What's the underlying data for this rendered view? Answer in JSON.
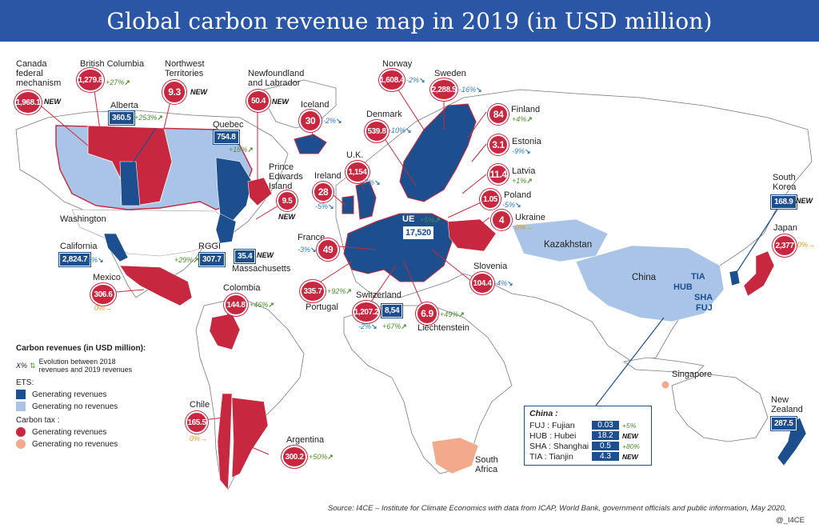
{
  "title": "Global carbon revenue map in 2019 (in USD million)",
  "colors": {
    "ets_revenue": "#1d4f8f",
    "ets_no_revenue": "#a9c4e6",
    "tax_revenue": "#c8283f",
    "tax_no_revenue": "#f2a98c",
    "land": "#ffffff",
    "title_bg": "#2a56a5"
  },
  "labels": {
    "canada_fed": "Canada federal mechanism",
    "british_columbia": "British Columbia",
    "northwest": "Northwest Territories",
    "newfoundland": "Newfoundland and Labrador",
    "alberta": "Alberta",
    "quebec": "Quebec",
    "pei": "Prince Edwards Island",
    "washington": "Washington",
    "california": "California",
    "rggi": "RGGI",
    "massachusetts": "Massachusetts",
    "mexico": "Mexico",
    "colombia": "Colombia",
    "chile": "Chile",
    "argentina": "Argentina",
    "iceland": "Iceland",
    "norway": "Norway",
    "sweden": "Sweden",
    "denmark": "Denmark",
    "finland": "Finland",
    "estonia": "Estonia",
    "latvia": "Latvia",
    "poland": "Poland",
    "ukraine": "Ukraine",
    "uk": "U.K.",
    "ireland": "Ireland",
    "france": "France",
    "portugal": "Portugal",
    "switzerland": "Switzerland",
    "liechtenstein": "Liechtenstein",
    "slovenia": "Slovenia",
    "kazakhstan": "Kazakhstan",
    "china": "China",
    "south_korea": "South Korea",
    "japan": "Japan",
    "singapore": "Singapore",
    "new_zealand": "New Zealand",
    "south_africa": "South Africa"
  },
  "values": {
    "canada_fed": "1,968.1",
    "british_columbia": "1,279.8",
    "northwest": "9.3",
    "newfoundland": "50.4",
    "alberta": "360.5",
    "quebec": "754.8",
    "pei": "9.5",
    "california": "2,824.7",
    "rggi": "307.7",
    "massachusetts": "35.4",
    "mexico": "306.6",
    "colombia": "144.8",
    "chile": "165.5",
    "argentina": "300.2",
    "iceland": "30",
    "norway": "1,608.4",
    "sweden": "2,288.5",
    "denmark": "539.8",
    "finland": "84",
    "estonia": "3.1",
    "latvia": "11.4",
    "poland": "1.05",
    "ukraine": "4",
    "uk": "1,154",
    "ireland": "28",
    "france": "49",
    "portugal": "335.7",
    "switzerland_tax": "1,207.2",
    "switzerland_ets": "8,54",
    "liechtenstein": "6.9",
    "slovenia": "104.4",
    "ue": "17,520",
    "south_korea": "168.9",
    "japan": "2,377",
    "new_zealand": "287.5"
  },
  "changes": {
    "british_columbia": "+27%",
    "alberta": "+253%",
    "quebec": "+18%",
    "california": "-6%",
    "rggi": "+29%",
    "mexico": "0%",
    "colombia": "+46%",
    "chile": "0%",
    "argentina": "+50%",
    "iceland": "-2%",
    "norway": "-2%",
    "sweden": "-16%",
    "denmark": "-10%",
    "finland": "+4%",
    "estonia": "-9%",
    "latvia": "+1%",
    "poland": "-5%",
    "ukraine": "0%",
    "uk": "-7%",
    "ireland": "-5%",
    "france": "-3%",
    "portugal": "+92%",
    "switzerland_tax": "-2%",
    "switzerland_ets": "+67%",
    "liechtenstein": "+49%",
    "slovenia": "-4%",
    "ue": "+5%",
    "japan": "0%"
  },
  "new_tag": "NEW",
  "ue_label": "UE",
  "china_codes": {
    "tia": "TIA",
    "hub": "HUB",
    "sha": "SHA",
    "fuj": "FUJ"
  },
  "china_box": {
    "title": "China :",
    "rows": [
      {
        "name": "FUJ : Fujian",
        "value": "0.03",
        "change": "+5%"
      },
      {
        "name": "HUB : Hubei",
        "value": "18.2",
        "change": "NEW"
      },
      {
        "name": "SHA : Shanghai",
        "value": "0.5",
        "change": "+80%"
      },
      {
        "name": "TIA : Tianjin",
        "value": "4.3",
        "change": "NEW"
      }
    ]
  },
  "legend": {
    "title": "Carbon revenues (in USD million):",
    "evo_symbol": "X%",
    "evo_text": "Evolution between 2018 revenues and 2019 revenues",
    "ets": "ETS:",
    "gen": "Generating revenues",
    "nogen": "Generating no revenues",
    "tax": "Carbon tax :"
  },
  "source": "Source: I4CE – Institute for Climate Economics with data from ICAP, World Bank, government officials and public information, May 2020.",
  "handle": "@_I4CE"
}
